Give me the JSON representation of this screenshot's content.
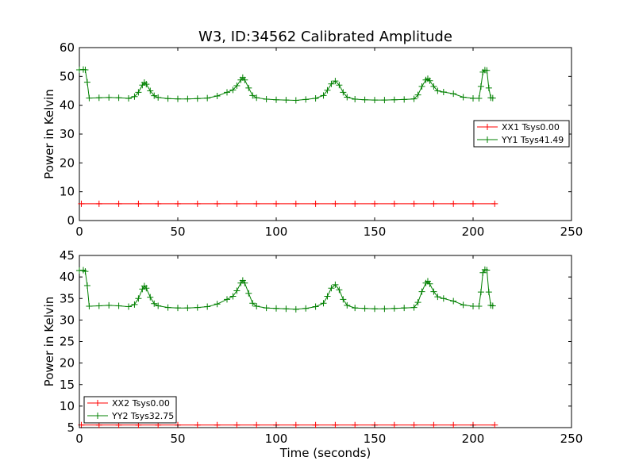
{
  "figure": {
    "title": "W3, ID:34562 Calibrated Amplitude"
  },
  "chart_data": [
    {
      "type": "line",
      "title": "W3, ID:34562 Calibrated Amplitude",
      "xlabel": "",
      "ylabel": "Power in Kelvin",
      "xlim": [
        0,
        250
      ],
      "ylim": [
        0,
        60
      ],
      "xticks": [
        "0",
        "50",
        "100",
        "150",
        "200",
        "250"
      ],
      "yticks": [
        "0",
        "10",
        "20",
        "30",
        "40",
        "50",
        "60"
      ],
      "grid": false,
      "legend_position": "center-right",
      "marker": "plus",
      "series": [
        {
          "name": "XX1 Tsys0.00",
          "color": "#ff0000",
          "x": [
            1,
            10,
            20,
            30,
            40,
            50,
            60,
            70,
            80,
            90,
            100,
            110,
            120,
            130,
            140,
            150,
            160,
            170,
            180,
            190,
            200,
            211
          ],
          "y": [
            5.8,
            5.8,
            5.8,
            5.8,
            5.8,
            5.8,
            5.8,
            5.8,
            5.8,
            5.8,
            5.8,
            5.8,
            5.8,
            5.8,
            5.8,
            5.8,
            5.8,
            5.8,
            5.8,
            5.8,
            5.8,
            5.8
          ]
        },
        {
          "name": "YY1 Tsys41.49",
          "color": "#008000",
          "x": [
            0,
            2,
            3,
            4,
            5,
            10,
            15,
            20,
            25,
            28,
            30,
            32,
            33,
            34,
            36,
            38,
            40,
            45,
            50,
            55,
            60,
            65,
            70,
            75,
            78,
            80,
            82,
            83,
            84,
            86,
            88,
            90,
            95,
            100,
            105,
            110,
            115,
            120,
            124,
            126,
            128,
            130,
            132,
            134,
            136,
            140,
            145,
            150,
            155,
            160,
            165,
            170,
            172,
            174,
            176,
            177,
            178,
            180,
            182,
            185,
            190,
            195,
            200,
            203,
            204,
            205,
            206,
            207,
            208,
            209,
            210
          ],
          "y": [
            52.3,
            52.4,
            52.3,
            48,
            42.5,
            42.6,
            42.7,
            42.6,
            42.4,
            43.0,
            44.5,
            47.0,
            47.9,
            47.3,
            45.0,
            43.3,
            42.7,
            42.3,
            42.2,
            42.2,
            42.3,
            42.5,
            43.2,
            44.5,
            45.3,
            46.8,
            48.8,
            49.6,
            48.8,
            46.0,
            43.4,
            42.6,
            42.1,
            41.9,
            41.8,
            41.7,
            42.0,
            42.4,
            43.4,
            45.2,
            47.4,
            48.4,
            47.0,
            44.5,
            42.8,
            42.1,
            41.9,
            41.8,
            41.8,
            41.9,
            42.0,
            42.2,
            43.6,
            46.5,
            48.8,
            49.2,
            48.5,
            46.5,
            45.0,
            44.6,
            44.0,
            42.8,
            42.4,
            42.4,
            46.5,
            51.5,
            52.2,
            52.1,
            46.0,
            42.6,
            42.5
          ]
        }
      ]
    },
    {
      "type": "line",
      "xlabel": "Time (seconds)",
      "ylabel": "Power in Kelvin",
      "xlim": [
        0,
        250
      ],
      "ylim": [
        5,
        45
      ],
      "xticks": [
        "0",
        "50",
        "100",
        "150",
        "200",
        "250"
      ],
      "yticks": [
        "5",
        "10",
        "15",
        "20",
        "25",
        "30",
        "35",
        "40",
        "45"
      ],
      "grid": false,
      "legend_position": "lower-left",
      "marker": "plus",
      "series": [
        {
          "name": "XX2 Tsys0.00",
          "color": "#ff0000",
          "x": [
            1,
            10,
            20,
            30,
            40,
            50,
            60,
            70,
            80,
            90,
            100,
            110,
            120,
            130,
            140,
            150,
            160,
            170,
            180,
            190,
            200,
            211
          ],
          "y": [
            5.6,
            5.6,
            5.6,
            5.6,
            5.6,
            5.6,
            5.6,
            5.6,
            5.6,
            5.6,
            5.6,
            5.6,
            5.6,
            5.6,
            5.6,
            5.6,
            5.6,
            5.6,
            5.6,
            5.6,
            5.6,
            5.6
          ]
        },
        {
          "name": "YY2 Tsys32.75",
          "color": "#008000",
          "x": [
            0,
            2,
            3,
            4,
            5,
            10,
            15,
            20,
            25,
            28,
            30,
            32,
            33,
            34,
            36,
            38,
            40,
            45,
            50,
            55,
            60,
            65,
            70,
            75,
            78,
            80,
            82,
            83,
            84,
            86,
            88,
            90,
            95,
            100,
            105,
            110,
            115,
            120,
            124,
            126,
            128,
            130,
            132,
            134,
            136,
            140,
            145,
            150,
            155,
            160,
            165,
            170,
            172,
            174,
            176,
            177,
            178,
            180,
            182,
            185,
            190,
            195,
            200,
            203,
            204,
            205,
            206,
            207,
            208,
            209,
            210
          ],
          "y": [
            41.5,
            41.6,
            41.3,
            38,
            33.2,
            33.3,
            33.4,
            33.3,
            33.1,
            33.6,
            35.0,
            37.2,
            37.9,
            37.4,
            35.3,
            33.8,
            33.3,
            32.9,
            32.8,
            32.8,
            32.9,
            33.1,
            33.7,
            34.8,
            35.5,
            36.8,
            38.6,
            39.2,
            38.6,
            36.2,
            33.9,
            33.2,
            32.8,
            32.7,
            32.6,
            32.5,
            32.7,
            33.1,
            33.9,
            35.5,
            37.4,
            38.2,
            37.0,
            34.8,
            33.4,
            32.8,
            32.7,
            32.6,
            32.6,
            32.7,
            32.8,
            32.9,
            34.1,
            36.6,
            38.6,
            39.0,
            38.4,
            36.6,
            35.4,
            35.0,
            34.4,
            33.5,
            33.2,
            33.2,
            36.5,
            41.0,
            41.7,
            41.6,
            36.5,
            33.4,
            33.3
          ]
        }
      ]
    }
  ]
}
